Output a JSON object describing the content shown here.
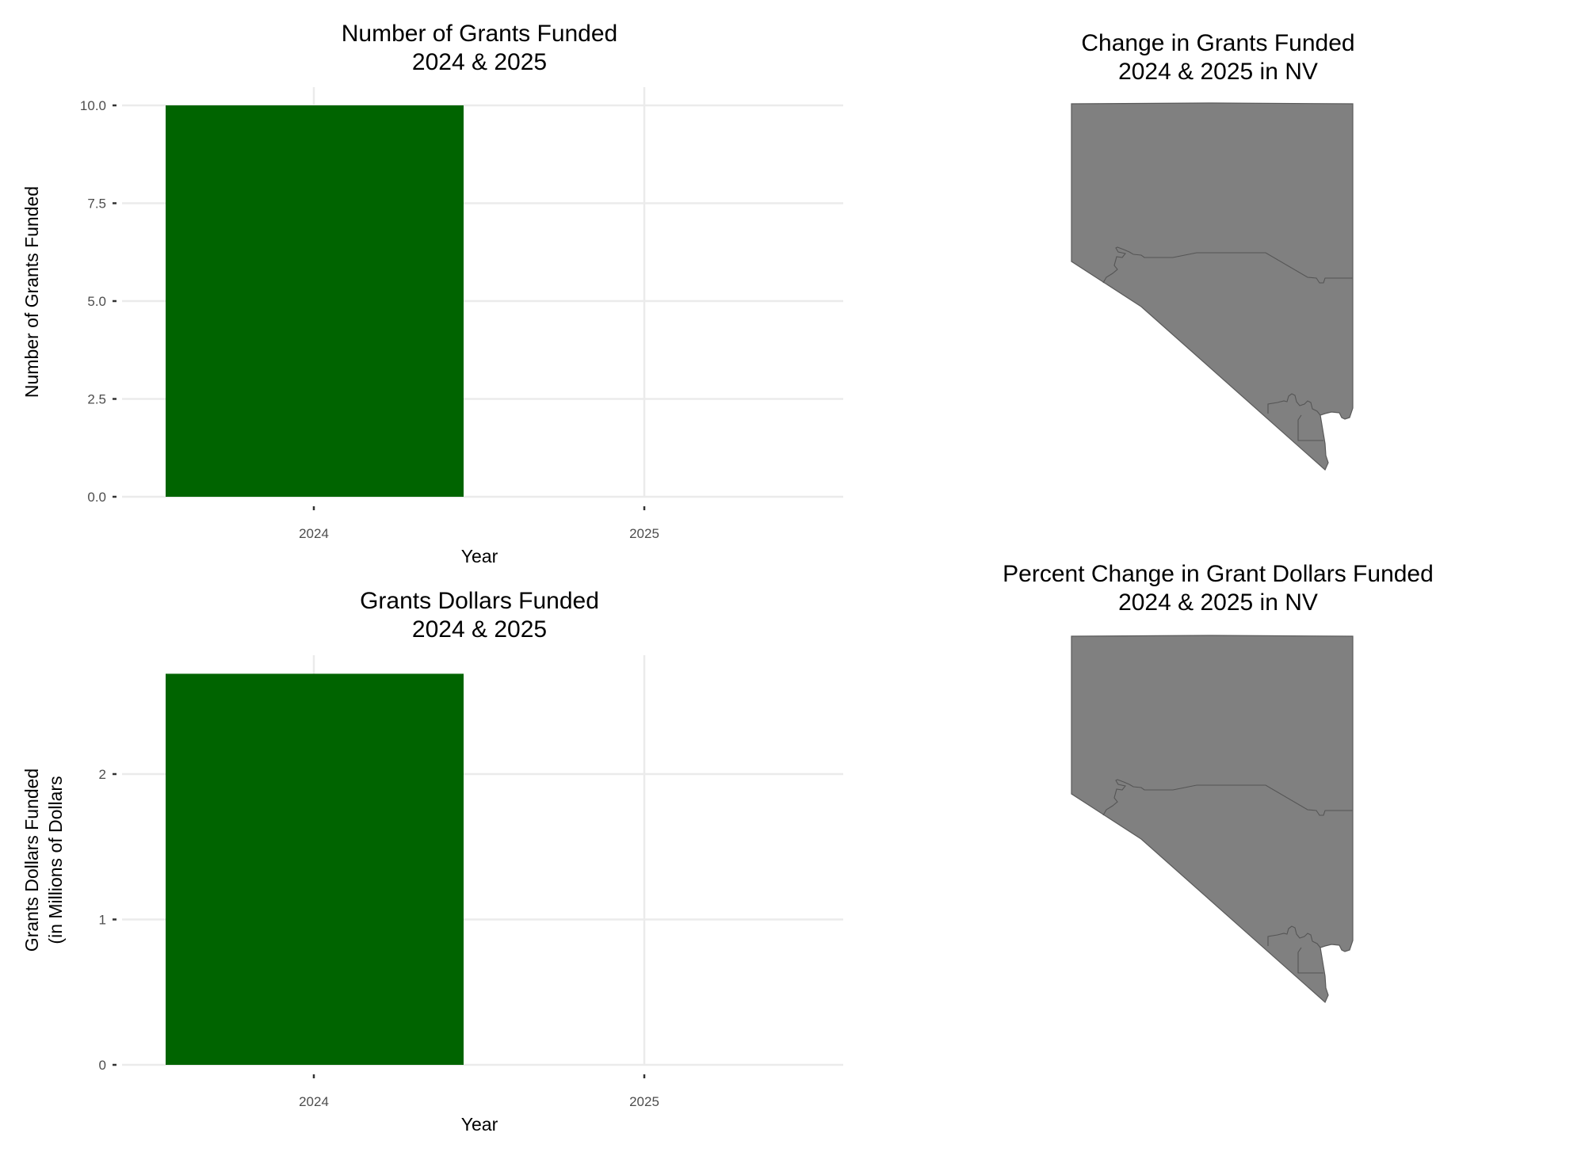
{
  "chart_data": [
    {
      "type": "bar",
      "title": [
        "Number of Grants Funded",
        "2024 & 2025"
      ],
      "xlabel": "Year",
      "ylabel": [
        "Number of Grants Funded"
      ],
      "categories": [
        "2024",
        "2025"
      ],
      "values": [
        10,
        0
      ],
      "yticks": [
        0,
        2.5,
        5,
        7.5,
        10
      ],
      "ytick_labels": [
        "0.0",
        "2.5",
        "5.0",
        "7.5",
        "10.0"
      ],
      "ylim": [
        0,
        10
      ],
      "bar_color": "#006400",
      "grid": true
    },
    {
      "type": "map",
      "title": [
        "Change in Grants Funded",
        "2024 & 2025 in NV"
      ],
      "fill_color": "#808080"
    },
    {
      "type": "bar",
      "title": [
        "Grants Dollars Funded",
        "2024 & 2025"
      ],
      "xlabel": "Year",
      "ylabel": [
        "Grants Dollars Funded",
        "(in Millions of Dollars"
      ],
      "categories": [
        "2024",
        "2025"
      ],
      "values": [
        2.69,
        0
      ],
      "yticks": [
        0,
        1,
        2
      ],
      "ytick_labels": [
        "0",
        "1",
        "2"
      ],
      "ylim": [
        0,
        2.69
      ],
      "bar_color": "#006400",
      "grid": true
    },
    {
      "type": "map",
      "title": [
        "Percent Change in Grant Dollars Funded",
        "2024 & 2025 in NV"
      ],
      "fill_color": "#808080"
    }
  ]
}
